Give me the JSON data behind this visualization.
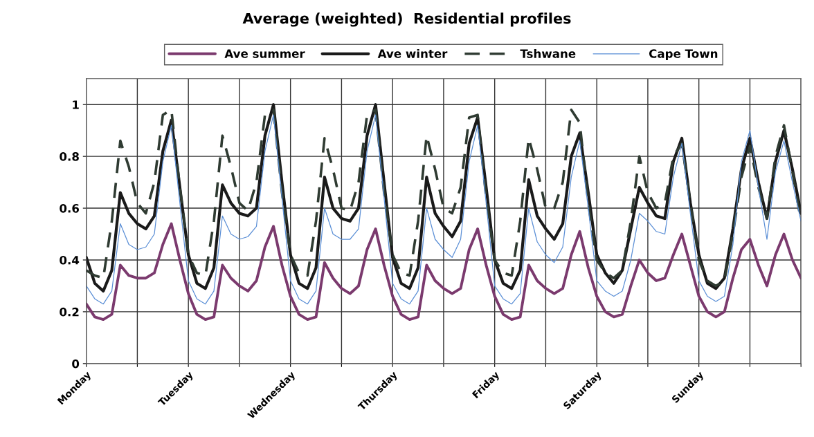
{
  "chart_data": {
    "type": "line",
    "title": "Average (weighted)  Residential profiles",
    "categories": [
      "Monday",
      null,
      null,
      null,
      null,
      null,
      null,
      null,
      null,
      null,
      null,
      null,
      "Tuesday",
      null,
      null,
      null,
      null,
      null,
      null,
      null,
      null,
      null,
      null,
      null,
      "Wednesday",
      null,
      null,
      null,
      null,
      null,
      null,
      null,
      null,
      null,
      null,
      null,
      "Thursday",
      null,
      null,
      null,
      null,
      null,
      null,
      null,
      null,
      null,
      null,
      null,
      "Friday",
      null,
      null,
      null,
      null,
      null,
      null,
      null,
      null,
      null,
      null,
      null,
      "Saturday",
      null,
      null,
      null,
      null,
      null,
      null,
      null,
      null,
      null,
      null,
      null,
      "Sunday",
      null,
      null,
      null,
      null,
      null,
      null,
      null,
      null,
      null,
      null,
      null,
      null
    ],
    "series": [
      {
        "name": "Ave summer",
        "color": "#7b3a6e",
        "line_style": "solid",
        "values": [
          0.23,
          0.18,
          0.17,
          0.19,
          0.38,
          0.34,
          0.33,
          0.33,
          0.35,
          0.46,
          0.54,
          0.4,
          0.27,
          0.19,
          0.17,
          0.18,
          0.38,
          0.33,
          0.3,
          0.28,
          0.32,
          0.45,
          0.53,
          0.38,
          0.26,
          0.19,
          0.17,
          0.18,
          0.39,
          0.33,
          0.29,
          0.27,
          0.3,
          0.44,
          0.52,
          0.38,
          0.26,
          0.19,
          0.17,
          0.18,
          0.38,
          0.32,
          0.29,
          0.27,
          0.29,
          0.44,
          0.52,
          0.38,
          0.26,
          0.19,
          0.17,
          0.18,
          0.38,
          0.32,
          0.29,
          0.27,
          0.29,
          0.42,
          0.51,
          0.37,
          0.26,
          0.2,
          0.18,
          0.19,
          0.3,
          0.4,
          0.35,
          0.32,
          0.33,
          0.42,
          0.5,
          0.38,
          0.26,
          0.2,
          0.18,
          0.2,
          0.33,
          0.44,
          0.48,
          0.38,
          0.3,
          0.42,
          0.5,
          0.4,
          0.33
        ]
      },
      {
        "name": "Ave winter",
        "color": "#1a1a1a",
        "line_style": "solid",
        "values": [
          0.41,
          0.31,
          0.28,
          0.36,
          0.66,
          0.58,
          0.54,
          0.52,
          0.57,
          0.82,
          0.94,
          0.68,
          0.42,
          0.31,
          0.29,
          0.37,
          0.69,
          0.62,
          0.58,
          0.57,
          0.6,
          0.88,
          1.0,
          0.7,
          0.42,
          0.31,
          0.29,
          0.37,
          0.72,
          0.6,
          0.56,
          0.55,
          0.6,
          0.88,
          1.0,
          0.7,
          0.41,
          0.31,
          0.29,
          0.37,
          0.72,
          0.58,
          0.53,
          0.49,
          0.55,
          0.85,
          0.95,
          0.68,
          0.4,
          0.31,
          0.29,
          0.36,
          0.71,
          0.57,
          0.52,
          0.48,
          0.54,
          0.8,
          0.89,
          0.66,
          0.42,
          0.35,
          0.31,
          0.36,
          0.52,
          0.68,
          0.62,
          0.57,
          0.56,
          0.78,
          0.87,
          0.62,
          0.42,
          0.31,
          0.29,
          0.33,
          0.52,
          0.75,
          0.87,
          0.7,
          0.56,
          0.78,
          0.9,
          0.75,
          0.58
        ]
      },
      {
        "name": "Tshwane",
        "color": "#2f3b32",
        "line_style": "dashed",
        "values": [
          0.36,
          0.34,
          0.33,
          0.55,
          0.86,
          0.76,
          0.62,
          0.58,
          0.7,
          0.96,
          0.98,
          0.68,
          0.42,
          0.35,
          0.34,
          0.55,
          0.88,
          0.76,
          0.62,
          0.59,
          0.7,
          0.96,
          0.98,
          0.66,
          0.42,
          0.35,
          0.34,
          0.55,
          0.87,
          0.75,
          0.6,
          0.59,
          0.7,
          0.96,
          0.98,
          0.66,
          0.42,
          0.35,
          0.34,
          0.55,
          0.88,
          0.75,
          0.6,
          0.58,
          0.68,
          0.95,
          0.96,
          0.64,
          0.4,
          0.35,
          0.34,
          0.55,
          0.87,
          0.75,
          0.6,
          0.6,
          0.7,
          0.98,
          0.93,
          0.62,
          0.4,
          0.35,
          0.33,
          0.36,
          0.55,
          0.8,
          0.66,
          0.6,
          0.62,
          0.8,
          0.85,
          0.62,
          0.4,
          0.32,
          0.3,
          0.32,
          0.5,
          0.72,
          0.84,
          0.68,
          0.56,
          0.8,
          0.92,
          0.74,
          0.55
        ]
      },
      {
        "name": "Cape Town",
        "color": "#5b8fd6",
        "line_style": "solid",
        "values": [
          0.3,
          0.25,
          0.23,
          0.28,
          0.54,
          0.46,
          0.44,
          0.45,
          0.5,
          0.78,
          0.92,
          0.62,
          0.32,
          0.25,
          0.23,
          0.28,
          0.57,
          0.5,
          0.48,
          0.49,
          0.53,
          0.82,
          0.96,
          0.64,
          0.32,
          0.25,
          0.23,
          0.28,
          0.6,
          0.5,
          0.48,
          0.48,
          0.52,
          0.82,
          0.96,
          0.64,
          0.31,
          0.25,
          0.23,
          0.28,
          0.6,
          0.48,
          0.44,
          0.41,
          0.48,
          0.78,
          0.92,
          0.62,
          0.3,
          0.25,
          0.23,
          0.27,
          0.6,
          0.47,
          0.42,
          0.39,
          0.45,
          0.72,
          0.86,
          0.6,
          0.32,
          0.28,
          0.26,
          0.28,
          0.4,
          0.58,
          0.55,
          0.51,
          0.5,
          0.72,
          0.85,
          0.58,
          0.32,
          0.26,
          0.24,
          0.26,
          0.46,
          0.78,
          0.9,
          0.68,
          0.48,
          0.74,
          0.86,
          0.7,
          0.55
        ]
      }
    ],
    "ylim": [
      0,
      1.1
    ],
    "yticks": [
      0,
      0.2,
      0.4,
      0.6,
      0.8,
      1
    ],
    "grid": true,
    "legend": "top"
  }
}
